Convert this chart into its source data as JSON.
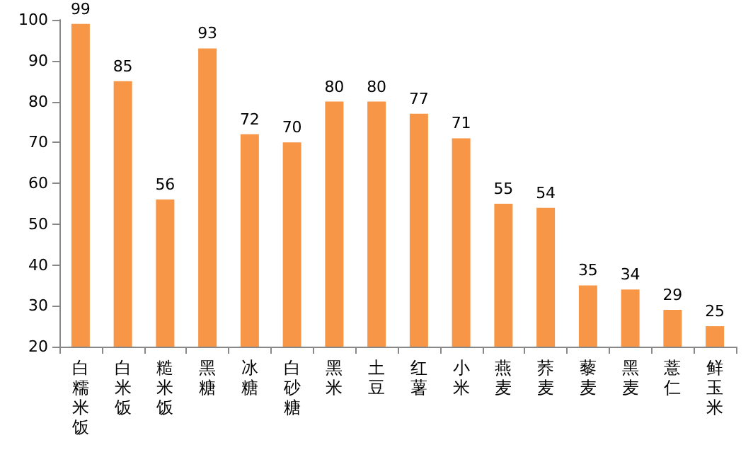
{
  "chart_data": {
    "type": "bar",
    "categories": [
      "白糯米饭",
      "白米饭",
      "糙米饭",
      "黑糖",
      "冰糖",
      "白砂糖",
      "黑米",
      "土豆",
      "红薯",
      "小米",
      "燕麦",
      "荞麦",
      "藜麦",
      "黑麦",
      "薏仁",
      "鲜玉米"
    ],
    "values": [
      99,
      85,
      56,
      93,
      72,
      70,
      80,
      80,
      77,
      71,
      55,
      54,
      35,
      34,
      29,
      25
    ],
    "color": "#f79646",
    "ylim": [
      20,
      100
    ],
    "yticks": [
      20,
      30,
      40,
      50,
      60,
      70,
      80,
      90,
      100
    ],
    "data_labels": true,
    "grid": false
  }
}
